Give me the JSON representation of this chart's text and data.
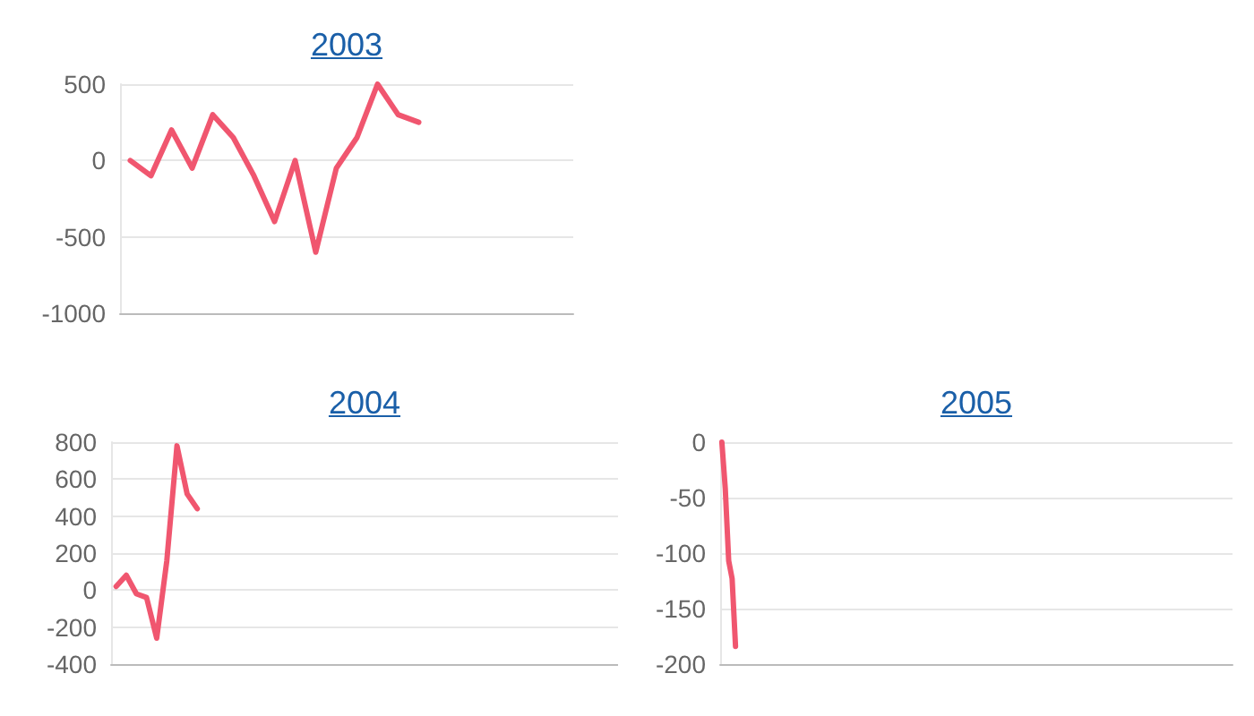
{
  "chart_data": [
    {
      "type": "line",
      "title": "2003",
      "color": "#f0566f",
      "grid": "y",
      "tick_labels": "y",
      "marker": "none",
      "ylim": [
        -1000,
        500
      ],
      "yticks": [
        -1000,
        -500,
        0,
        500
      ],
      "categories": [
        null,
        null,
        null,
        null,
        null,
        null,
        null,
        null,
        null,
        null,
        null,
        null,
        null,
        null,
        null,
        null,
        null,
        null,
        null,
        null,
        null,
        null
      ],
      "values": [
        0,
        -100,
        200,
        -50,
        300,
        150,
        -100,
        -400,
        0,
        -600,
        -50,
        150,
        500,
        300,
        250,
        null,
        null,
        null,
        null,
        null,
        null,
        null
      ]
    },
    {
      "type": "line",
      "title": "2004",
      "color": "#f0566f",
      "grid": "y",
      "tick_labels": "y",
      "marker": "none",
      "ylim": [
        -400,
        800
      ],
      "yticks": [
        -400,
        -200,
        0,
        200,
        400,
        600,
        800
      ],
      "categories": [
        null,
        null,
        null,
        null,
        null,
        null,
        null,
        null,
        null,
        null,
        null,
        null,
        null,
        null,
        null,
        null,
        null,
        null,
        null,
        null,
        null,
        null,
        null,
        null,
        null,
        null,
        null,
        null,
        null,
        null,
        null,
        null,
        null,
        null,
        null,
        null,
        null,
        null,
        null,
        null,
        null,
        null,
        null,
        null,
        null,
        null,
        null,
        null,
        null,
        null
      ],
      "values": [
        20,
        80,
        -20,
        -40,
        -260,
        160,
        780,
        520,
        440,
        null,
        null,
        null,
        null,
        null,
        null,
        null,
        null,
        null,
        null,
        null,
        null,
        null,
        null,
        null,
        null,
        null,
        null,
        null,
        null,
        null,
        null,
        null,
        null,
        null,
        null,
        null,
        null,
        null,
        null,
        null,
        null,
        null,
        null,
        null,
        null,
        null,
        null,
        null,
        null,
        null
      ]
    },
    {
      "type": "line",
      "title": "2005",
      "color": "#f0566f",
      "grid": "y",
      "tick_labels": "y",
      "marker": "none",
      "ylim": [
        -200,
        0
      ],
      "yticks": [
        -200,
        -150,
        -100,
        -50,
        0
      ],
      "categories": [
        null,
        null,
        null,
        null,
        null,
        null,
        null,
        null,
        null,
        null,
        null,
        null,
        null,
        null,
        null,
        null,
        null,
        null,
        null,
        null,
        null,
        null,
        null,
        null,
        null,
        null,
        null,
        null,
        null,
        null,
        null,
        null,
        null,
        null,
        null,
        null,
        null,
        null,
        null,
        null,
        null,
        null,
        null,
        null,
        null,
        null,
        null,
        null,
        null,
        null,
        null,
        null,
        null,
        null,
        null,
        null,
        null,
        null,
        null,
        null,
        null,
        null,
        null,
        null,
        null,
        null,
        null,
        null,
        null,
        null,
        null,
        null,
        null,
        null,
        null,
        null,
        null,
        null,
        null,
        null,
        null,
        null,
        null,
        null,
        null,
        null,
        null,
        null,
        null,
        null,
        null,
        null,
        null,
        null,
        null,
        null,
        null,
        null,
        null,
        null,
        null,
        null,
        null,
        null,
        null,
        null,
        null,
        null,
        null,
        null,
        null,
        null,
        null,
        null,
        null,
        null,
        null,
        null,
        null,
        null,
        null,
        null,
        null,
        null,
        null,
        null,
        null,
        null,
        null,
        null,
        null,
        null,
        null,
        null,
        null,
        null,
        null,
        null,
        null,
        null,
        null,
        null,
        null,
        null,
        null,
        null,
        null,
        null,
        null,
        null
      ],
      "values": [
        0,
        -42,
        -107,
        -123,
        -184,
        null,
        null,
        null,
        null,
        null,
        null,
        null,
        null,
        null,
        null,
        null,
        null,
        null,
        null,
        null,
        null,
        null,
        null,
        null,
        null,
        null,
        null,
        null,
        null,
        null,
        null,
        null,
        null,
        null,
        null,
        null,
        null,
        null,
        null,
        null,
        null,
        null,
        null,
        null,
        null,
        null,
        null,
        null,
        null,
        null,
        null,
        null,
        null,
        null,
        null,
        null,
        null,
        null,
        null,
        null,
        null,
        null,
        null,
        null,
        null,
        null,
        null,
        null,
        null,
        null,
        null,
        null,
        null,
        null,
        null,
        null,
        null,
        null,
        null,
        null,
        null,
        null,
        null,
        null,
        null,
        null,
        null,
        null,
        null,
        null,
        null,
        null,
        null,
        null,
        null,
        null,
        null,
        null,
        null,
        null,
        null,
        null,
        null,
        null,
        null,
        null,
        null,
        null,
        null,
        null,
        null,
        null,
        null,
        null,
        null,
        null,
        null,
        null,
        null,
        null,
        null,
        null,
        null,
        null,
        null,
        null,
        null,
        null,
        null,
        null,
        null,
        null,
        null,
        null,
        null,
        null,
        null,
        null,
        null,
        null,
        null,
        null,
        null,
        null,
        null,
        null,
        null,
        null,
        null,
        null
      ]
    }
  ]
}
